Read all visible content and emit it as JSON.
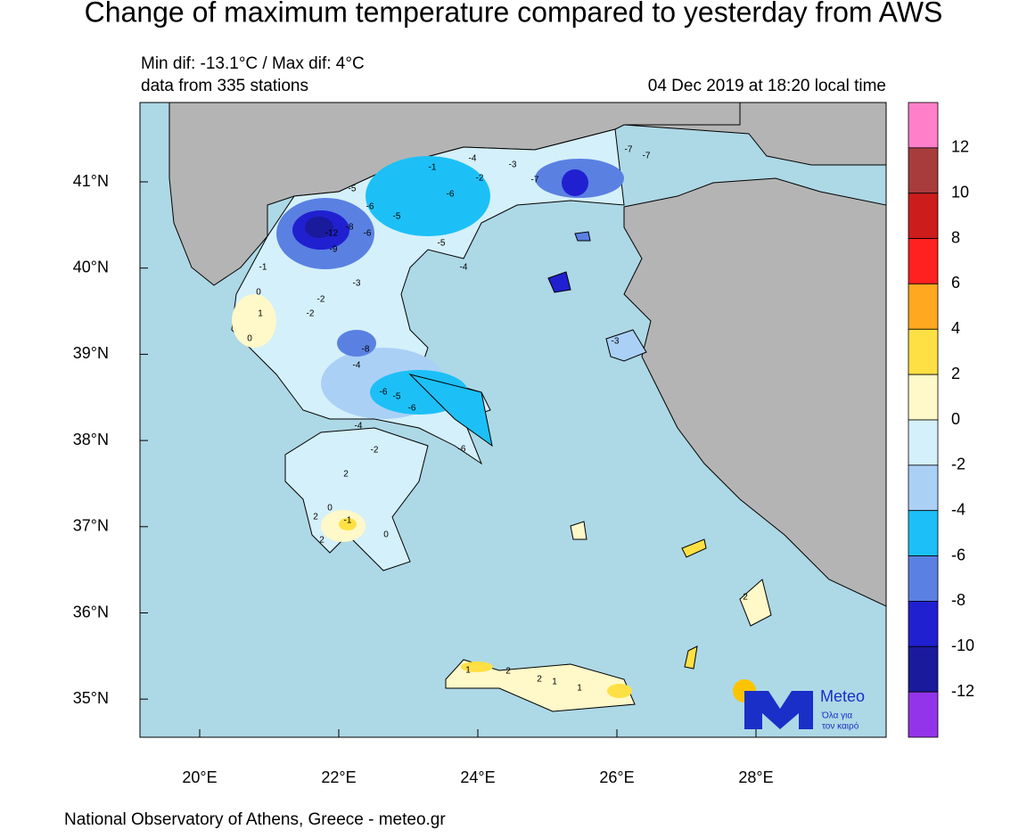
{
  "header": {
    "title": "Change of maximum temperature compared to yesterday from AWS",
    "range_line": "Min dif: -13.1°C / Max dif: 4°C",
    "stations_line": "data from 335 stations",
    "date_line": "04 Dec 2019 at 18:20 local time"
  },
  "map": {
    "lon_ticks": [
      {
        "value": 20,
        "label": "20°E"
      },
      {
        "value": 22,
        "label": "22°E"
      },
      {
        "value": 24,
        "label": "24°E"
      },
      {
        "value": 26,
        "label": "26°E"
      },
      {
        "value": 28,
        "label": "28°E"
      }
    ],
    "lat_ticks": [
      {
        "value": 41,
        "label": "41°N"
      },
      {
        "value": 40,
        "label": "40°N"
      },
      {
        "value": 39,
        "label": "39°N"
      },
      {
        "value": 38,
        "label": "38°N"
      },
      {
        "value": 37,
        "label": "37°N"
      },
      {
        "value": 36,
        "label": "36°N"
      },
      {
        "value": 35,
        "label": "35°N"
      }
    ],
    "station_labels": [
      "-1",
      "-4",
      "-6",
      "-2",
      "-3",
      "-7",
      "-7",
      "-7",
      "-5",
      "-6",
      "-12",
      "-9",
      "-8",
      "-6",
      "-5",
      "-5",
      "-4",
      "-1",
      "0",
      "1",
      "0",
      "-2",
      "-3",
      "-2",
      "-8",
      "-4",
      "-6",
      "-5",
      "-6",
      "-2",
      "-6",
      "-4",
      "2",
      "0",
      "2",
      "2",
      "-1",
      "0",
      "1",
      "2",
      "2",
      "1",
      "1",
      "2",
      "-3"
    ]
  },
  "colorbar": {
    "colors": [
      "#ff80c8",
      "#a83c3c",
      "#cc1c1c",
      "#ff2020",
      "#ffa820",
      "#ffe044",
      "#fff8c8",
      "#d4f0fa",
      "#aad0f6",
      "#1cc0f6",
      "#5a80e2",
      "#2020d0",
      "#1a1a9c",
      "#9434ea"
    ],
    "labels": [
      "12",
      "10",
      "8",
      "6",
      "4",
      "2",
      "0",
      "-2",
      "-4",
      "-6",
      "-8",
      "-10",
      "-12"
    ]
  },
  "logo": {
    "name": "Meteo",
    "tagline1": "Όλα για",
    "tagline2": "τον καιρό"
  },
  "footer": "National Observatory of Athens, Greece - meteo.gr"
}
